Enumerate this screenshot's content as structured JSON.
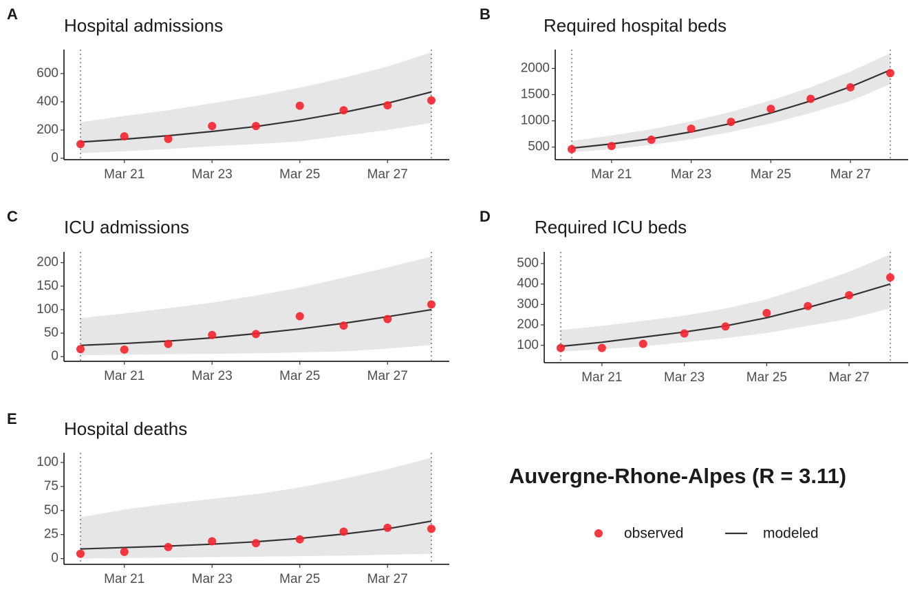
{
  "title": "Auvergne-Rhone-Alpes (R = 3.11)",
  "legend": [
    {
      "name": "observed",
      "color": "#f5222d",
      "marker": "point"
    },
    {
      "name": "modeled",
      "color": "#333333",
      "marker": "line"
    }
  ],
  "band_color": "#e6e6e6",
  "chart_data": [
    {
      "type": "line",
      "tag": "A",
      "title": "Hospital admissions",
      "x": [
        "Mar 20",
        "Mar 21",
        "Mar 22",
        "Mar 23",
        "Mar 24",
        "Mar 25",
        "Mar 26",
        "Mar 27",
        "Mar 28"
      ],
      "xticks": [
        "Mar 21",
        "Mar 23",
        "Mar 25",
        "Mar 27"
      ],
      "observed": [
        100,
        155,
        137,
        228,
        228,
        372,
        340,
        375,
        410
      ],
      "modeled": [
        115,
        135,
        160,
        190,
        225,
        270,
        325,
        390,
        470
      ],
      "lower": [
        35,
        50,
        65,
        85,
        100,
        120,
        160,
        200,
        250
      ],
      "upper": [
        255,
        300,
        340,
        390,
        440,
        500,
        570,
        650,
        750
      ],
      "ylim": [
        -10,
        770
      ],
      "yticks": [
        0,
        200,
        400,
        600
      ]
    },
    {
      "type": "line",
      "tag": "B",
      "title": "Required hospital beds",
      "x": [
        "Mar 20",
        "Mar 21",
        "Mar 22",
        "Mar 23",
        "Mar 24",
        "Mar 25",
        "Mar 26",
        "Mar 27",
        "Mar 28"
      ],
      "xticks": [
        "Mar 21",
        "Mar 23",
        "Mar 25",
        "Mar 27"
      ],
      "observed": [
        460,
        520,
        640,
        850,
        980,
        1230,
        1420,
        1640,
        1910
      ],
      "modeled": [
        480,
        560,
        660,
        790,
        950,
        1150,
        1380,
        1650,
        1970
      ],
      "lower": [
        400,
        460,
        540,
        650,
        790,
        950,
        1150,
        1380,
        1700
      ],
      "upper": [
        620,
        720,
        840,
        990,
        1170,
        1390,
        1640,
        1940,
        2290
      ],
      "ylim": [
        260,
        2360
      ],
      "yticks": [
        500,
        1000,
        1500,
        2000
      ]
    },
    {
      "type": "line",
      "tag": "C",
      "title": "ICU admissions",
      "x": [
        "Mar 20",
        "Mar 21",
        "Mar 22",
        "Mar 23",
        "Mar 24",
        "Mar 25",
        "Mar 26",
        "Mar 27",
        "Mar 28"
      ],
      "xticks": [
        "Mar 21",
        "Mar 23",
        "Mar 25",
        "Mar 27"
      ],
      "observed": [
        16,
        15,
        27,
        46,
        48,
        86,
        66,
        80,
        111
      ],
      "modeled": [
        24,
        28,
        33,
        40,
        49,
        59,
        71,
        85,
        100
      ],
      "lower": [
        3,
        4,
        5,
        6,
        7,
        9,
        11,
        17,
        25
      ],
      "upper": [
        82,
        92,
        103,
        115,
        130,
        147,
        168,
        190,
        213
      ],
      "ylim": [
        -10,
        223
      ],
      "yticks": [
        0,
        50,
        100,
        150,
        200
      ]
    },
    {
      "type": "line",
      "tag": "D",
      "title": "Required ICU beds",
      "x": [
        "Mar 20",
        "Mar 21",
        "Mar 22",
        "Mar 23",
        "Mar 24",
        "Mar 25",
        "Mar 26",
        "Mar 27",
        "Mar 28"
      ],
      "xticks": [
        "Mar 21",
        "Mar 23",
        "Mar 25",
        "Mar 27"
      ],
      "observed": [
        87,
        87,
        107,
        158,
        192,
        258,
        292,
        345,
        432
      ],
      "modeled": [
        95,
        115,
        140,
        165,
        195,
        235,
        285,
        340,
        400
      ],
      "lower": [
        70,
        80,
        95,
        115,
        135,
        160,
        195,
        230,
        280
      ],
      "upper": [
        175,
        195,
        220,
        245,
        280,
        325,
        390,
        460,
        545
      ],
      "ylim": [
        15,
        557
      ],
      "yticks": [
        100,
        200,
        300,
        400,
        500
      ]
    },
    {
      "type": "line",
      "tag": "E",
      "title": "Hospital deaths",
      "x": [
        "Mar 20",
        "Mar 21",
        "Mar 22",
        "Mar 23",
        "Mar 24",
        "Mar 25",
        "Mar 26",
        "Mar 27",
        "Mar 28"
      ],
      "xticks": [
        "Mar 21",
        "Mar 23",
        "Mar 25",
        "Mar 27"
      ],
      "observed": [
        5,
        7,
        12,
        18,
        16,
        20,
        28,
        32,
        31
      ],
      "modeled": [
        10,
        11.5,
        13,
        15,
        17.5,
        21,
        25.5,
        31,
        39
      ],
      "lower": [
        0,
        0.5,
        1,
        1.5,
        2,
        2.5,
        3,
        4,
        5
      ],
      "upper": [
        43,
        51,
        57,
        62,
        67,
        74,
        83,
        93,
        105
      ],
      "ylim": [
        -6,
        110
      ],
      "yticks": [
        0,
        25,
        50,
        75,
        100
      ]
    }
  ]
}
